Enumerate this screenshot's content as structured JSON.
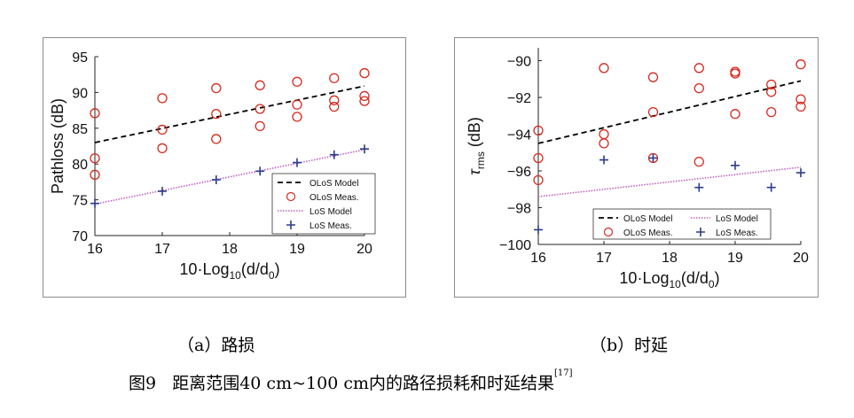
{
  "figure": {
    "caption_label": "图9",
    "caption_text": "距离范围40 cm~100 cm内的路径损耗和时延结果",
    "caption_ref": "[17]"
  },
  "chart_data": [
    {
      "type": "scatter",
      "panel_caption": "（a）路损",
      "xlabel_parts": [
        "10·Log",
        "10",
        "(d/d",
        "0",
        ")"
      ],
      "ylabel": "Pathloss (dB)",
      "xlim": [
        16,
        20
      ],
      "ylim": [
        70,
        95
      ],
      "xticks": [
        16,
        17,
        18,
        19,
        20
      ],
      "yticks": [
        70,
        75,
        80,
        85,
        90,
        95
      ],
      "grid": false,
      "legend_position": "lower-right",
      "legend_layout": "single-column",
      "series": [
        {
          "name": "OLoS Model",
          "kind": "line",
          "style": "dashed",
          "color": "#000000",
          "x": [
            16,
            20
          ],
          "y": [
            83.0,
            90.9
          ]
        },
        {
          "name": "OLoS Meas.",
          "kind": "marker",
          "marker": "circle",
          "color": "#d62a1e",
          "x": [
            16,
            16,
            16,
            17,
            17,
            17,
            17.8,
            17.8,
            17.8,
            18.45,
            18.45,
            18.45,
            19,
            19,
            19,
            19.55,
            19.55,
            19.55,
            20,
            20,
            20
          ],
          "y": [
            87.1,
            80.8,
            78.5,
            89.2,
            84.8,
            82.2,
            90.6,
            87.0,
            83.5,
            91.0,
            87.7,
            85.3,
            91.5,
            88.3,
            86.6,
            92.0,
            88.9,
            88.0,
            92.7,
            89.5,
            88.8
          ]
        },
        {
          "name": "LoS Model",
          "kind": "line",
          "style": "dotted",
          "color": "#c060c0",
          "x": [
            16,
            20
          ],
          "y": [
            74.4,
            82.0
          ]
        },
        {
          "name": "LoS Meas.",
          "kind": "marker",
          "marker": "plus",
          "color": "#2b3d8f",
          "x": [
            16,
            17,
            17.8,
            18.45,
            19,
            19.55,
            20
          ],
          "y": [
            74.5,
            76.2,
            77.8,
            79.0,
            80.2,
            81.3,
            82.1
          ]
        }
      ]
    },
    {
      "type": "scatter",
      "panel_caption": "（b）时延",
      "xlabel_parts": [
        "10·Log",
        "10",
        "(d/d",
        "0",
        ")"
      ],
      "ylabel_parts": [
        "τ",
        "rms",
        " (dB)"
      ],
      "xlim": [
        16,
        20
      ],
      "ylim": [
        -100,
        -89.3
      ],
      "xticks": [
        16,
        17,
        18,
        19,
        20
      ],
      "yticks": [
        -100,
        -98,
        -96,
        -94,
        -92,
        -90
      ],
      "grid": false,
      "legend_position": "lower-right",
      "legend_layout": "two-column",
      "series": [
        {
          "name": "OLoS Model",
          "kind": "line",
          "style": "dashed",
          "color": "#000000",
          "x": [
            16,
            20
          ],
          "y": [
            -94.5,
            -91.1
          ]
        },
        {
          "name": "LoS Model",
          "kind": "line",
          "style": "dotted",
          "color": "#c060c0",
          "x": [
            16,
            20
          ],
          "y": [
            -97.4,
            -95.8
          ]
        },
        {
          "name": "OLoS Meas.",
          "kind": "marker",
          "marker": "circle",
          "color": "#d62a1e",
          "x": [
            16,
            16,
            16,
            17,
            17,
            17,
            17.75,
            17.75,
            17.75,
            18.45,
            18.45,
            18.45,
            19,
            19,
            19,
            19.55,
            19.55,
            19.55,
            20,
            20,
            20
          ],
          "y": [
            -93.8,
            -95.3,
            -96.5,
            -90.4,
            -94.0,
            -94.5,
            -90.9,
            -92.8,
            -95.3,
            -90.4,
            -91.5,
            -95.5,
            -90.6,
            -90.7,
            -92.9,
            -91.3,
            -91.7,
            -92.8,
            -90.2,
            -92.1,
            -92.5
          ]
        },
        {
          "name": "LoS Meas.",
          "kind": "marker",
          "marker": "plus",
          "color": "#2b3d8f",
          "x": [
            16,
            17,
            17.75,
            18.45,
            19,
            19.55,
            20
          ],
          "y": [
            -99.2,
            -95.4,
            -95.3,
            -96.9,
            -95.7,
            -96.9,
            -96.1
          ]
        }
      ]
    }
  ]
}
